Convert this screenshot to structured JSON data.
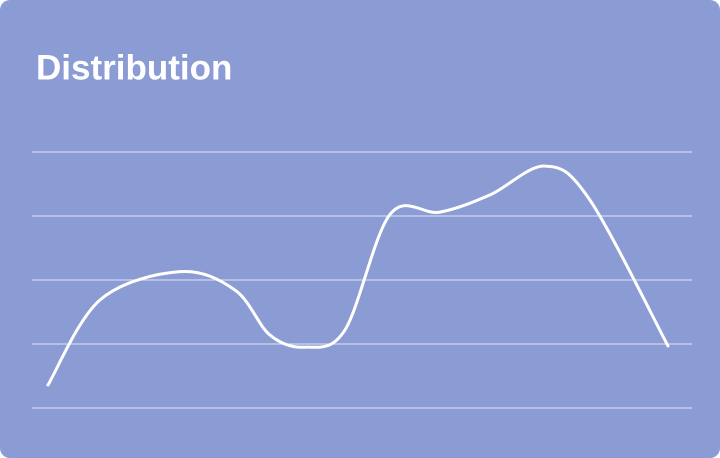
{
  "chart_data": {
    "type": "line",
    "title": "Distribution",
    "x": [
      0,
      8.4,
      21.3,
      30.2,
      35.8,
      41.5,
      47.9,
      55.2,
      63.2,
      71.3,
      80.2,
      87.4,
      100
    ],
    "series": [
      {
        "color": "#ffffff",
        "values": [
          0.36,
          1.69,
          2.13,
          1.84,
          1.14,
          0.95,
          1.22,
          3.03,
          3.06,
          3.33,
          3.78,
          3.25,
          0.97
        ]
      }
    ],
    "xlim": [
      0,
      100
    ],
    "ylim": [
      0,
      4
    ],
    "yticks": [
      0,
      1,
      2,
      3,
      4
    ],
    "grid": true
  }
}
